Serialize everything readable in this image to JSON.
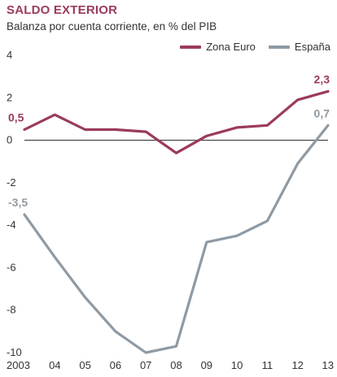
{
  "chart_data": {
    "type": "line",
    "title": "SALDO EXTERIOR",
    "subtitle": "Balanza por cuenta corriente, en % del PIB",
    "x_labels": [
      "2003",
      "04",
      "05",
      "06",
      "07",
      "08",
      "09",
      "10",
      "11",
      "12",
      "13"
    ],
    "x": [
      2003,
      2004,
      2005,
      2006,
      2007,
      2008,
      2009,
      2010,
      2011,
      2012,
      2013
    ],
    "ylim": [
      -10,
      4
    ],
    "y_ticks": [
      4,
      2,
      0,
      -2,
      -4,
      -6,
      -8,
      -10
    ],
    "legend_position": "top-right",
    "series": [
      {
        "name": "Zona Euro",
        "color": "#9b3a5e",
        "values": [
          0.5,
          1.2,
          0.5,
          0.5,
          0.4,
          -0.6,
          0.2,
          0.6,
          0.7,
          1.9,
          2.3
        ]
      },
      {
        "name": "España",
        "color": "#8f9aa3",
        "values": [
          -3.5,
          -5.5,
          -7.4,
          -9.0,
          -10.0,
          -9.7,
          -4.8,
          -4.5,
          -3.8,
          -1.1,
          0.7
        ]
      }
    ],
    "annotations": [
      {
        "series": 0,
        "index": 0,
        "text": "0,5"
      },
      {
        "series": 0,
        "index": 10,
        "text": "2,3"
      },
      {
        "series": 1,
        "index": 0,
        "text": "-3,5"
      },
      {
        "series": 1,
        "index": 10,
        "text": "0,7"
      }
    ]
  }
}
